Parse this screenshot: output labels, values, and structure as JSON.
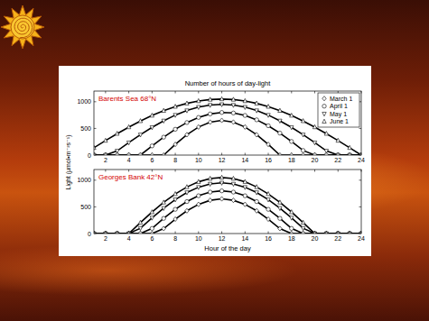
{
  "chart_data": [
    {
      "type": "line",
      "title": "Number of hours of day-light",
      "annotation": "Barents Sea 68°N",
      "y_label": "Light (μmol•m⁻²s⁻¹)",
      "x": [
        1,
        2,
        3,
        4,
        5,
        6,
        7,
        8,
        9,
        10,
        11,
        12,
        13,
        14,
        15,
        16,
        17,
        18,
        19,
        20,
        21,
        22,
        23,
        24
      ],
      "xlim": [
        1,
        24
      ],
      "xticks": [
        2,
        4,
        6,
        8,
        10,
        12,
        14,
        16,
        18,
        20,
        22,
        24
      ],
      "ylim": [
        0,
        1200
      ],
      "yticks": [
        0,
        500,
        1000
      ],
      "legend": "upper right",
      "series": [
        {
          "name": "March 1",
          "marker": "diamond",
          "color": "#000000",
          "values": [
            0,
            0,
            0,
            0,
            0,
            0,
            0,
            201,
            382,
            526,
            618,
            650,
            618,
            526,
            382,
            201,
            0,
            0,
            0,
            0,
            0,
            0,
            0,
            0
          ]
        },
        {
          "name": "April 1",
          "marker": "circle",
          "color": "#000000",
          "values": [
            0,
            0,
            0,
            0,
            0,
            172,
            336,
            484,
            610,
            706,
            771,
            799,
            789,
            743,
            661,
            550,
            412,
            255,
            86,
            0,
            0,
            0,
            0,
            0
          ]
        },
        {
          "name": "May 1",
          "marker": "triangle-down",
          "color": "#000000",
          "values": [
            0,
            0,
            79,
            233,
            382,
            520,
            643,
            750,
            835,
            899,
            937,
            950,
            937,
            899,
            835,
            750,
            643,
            520,
            382,
            233,
            79,
            0,
            0,
            0
          ]
        },
        {
          "name": "June 1",
          "marker": "triangle-up",
          "color": "#000000",
          "values": [
            137,
            272,
            402,
            525,
            639,
            742,
            833,
            909,
            970,
            1014,
            1041,
            1050,
            1041,
            1014,
            970,
            909,
            833,
            742,
            639,
            525,
            402,
            272,
            137,
            0
          ]
        }
      ]
    },
    {
      "type": "line",
      "annotation": "Georges Bank 42°N",
      "x_label": "Hour of the day",
      "x": [
        1,
        2,
        3,
        4,
        5,
        6,
        7,
        8,
        9,
        10,
        11,
        12,
        13,
        14,
        15,
        16,
        17,
        18,
        19,
        20,
        21,
        22,
        23,
        24
      ],
      "xlim": [
        1,
        24
      ],
      "xticks": [
        2,
        4,
        6,
        8,
        10,
        12,
        14,
        16,
        18,
        20,
        22,
        24
      ],
      "ylim": [
        0,
        1200
      ],
      "yticks": [
        0,
        500,
        1000
      ],
      "series": [
        {
          "marker": "diamond",
          "color": "#000000",
          "values": [
            0,
            0,
            0,
            0,
            0,
            0,
            93,
            270,
            426,
            547,
            623,
            650,
            623,
            547,
            426,
            270,
            93,
            0,
            0,
            0,
            0,
            0,
            0,
            0
          ]
        },
        {
          "marker": "circle",
          "color": "#000000",
          "values": [
            0,
            0,
            0,
            0,
            0,
            96,
            284,
            454,
            599,
            708,
            777,
            800,
            777,
            708,
            599,
            454,
            284,
            96,
            0,
            0,
            0,
            0,
            0,
            0
          ]
        },
        {
          "marker": "triangle-down",
          "color": "#000000",
          "values": [
            0,
            0,
            0,
            0,
            99,
            294,
            475,
            636,
            769,
            868,
            929,
            950,
            929,
            868,
            769,
            636,
            475,
            294,
            99,
            0,
            0,
            0,
            0,
            0
          ]
        },
        {
          "marker": "triangle-up",
          "color": "#000000",
          "values": [
            0,
            0,
            0,
            0,
            205,
            402,
            584,
            742,
            873,
            970,
            1030,
            1050,
            1030,
            970,
            873,
            742,
            584,
            402,
            205,
            0,
            0,
            0,
            0,
            0
          ]
        }
      ]
    }
  ]
}
